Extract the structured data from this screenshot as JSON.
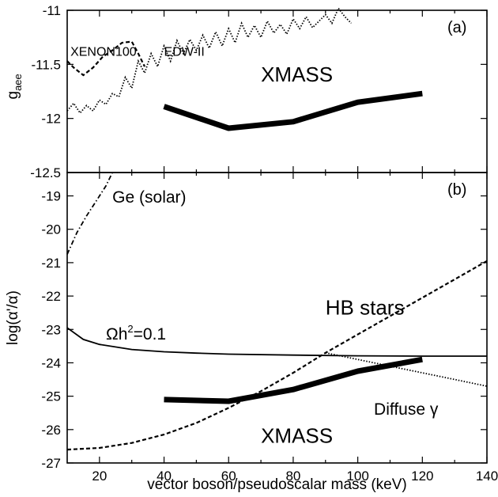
{
  "chart_data": [
    {
      "panel": "(a)",
      "type": "line",
      "xlim": [
        10,
        140
      ],
      "ylim": [
        -12.5,
        -11
      ],
      "ylabel_main": "g",
      "ylabel_sub": "aee",
      "yticks": [
        "-11",
        "-11.5",
        "-12",
        "-12.5"
      ],
      "series": [
        {
          "name": "XMASS",
          "style": "thick",
          "x": [
            40,
            60,
            80,
            100,
            120
          ],
          "y": [
            -11.89,
            -12.09,
            -12.03,
            -11.85,
            -11.77
          ]
        },
        {
          "name": "XENON100",
          "style": "dashed",
          "x": [
            10,
            12,
            15,
            18,
            21,
            24,
            27,
            30,
            32,
            34
          ],
          "y": [
            -11.47,
            -11.53,
            -11.6,
            -11.53,
            -11.43,
            -11.37,
            -11.3,
            -11.29,
            -11.4,
            -11.52
          ]
        },
        {
          "name": "EDW-II",
          "style": "dotted",
          "x": [
            10,
            12,
            14,
            16,
            18,
            20,
            22,
            24,
            26,
            28,
            30,
            32,
            34,
            36,
            38,
            40,
            42,
            44,
            46,
            48,
            50,
            52,
            54,
            56,
            58,
            60,
            62,
            64,
            66,
            68,
            70,
            72,
            74,
            76,
            78,
            80,
            82,
            84,
            86,
            88,
            90,
            92,
            94,
            96,
            98
          ],
          "y": [
            -11.93,
            -11.86,
            -11.95,
            -11.88,
            -11.93,
            -11.83,
            -11.87,
            -11.77,
            -11.8,
            -11.62,
            -11.72,
            -11.47,
            -11.58,
            -11.4,
            -11.52,
            -11.33,
            -11.47,
            -11.28,
            -11.4,
            -11.27,
            -11.37,
            -11.23,
            -11.35,
            -11.2,
            -11.33,
            -11.17,
            -11.3,
            -11.12,
            -11.25,
            -11.14,
            -11.25,
            -11.1,
            -11.21,
            -11.13,
            -11.22,
            -11.08,
            -11.17,
            -11.06,
            -11.16,
            -11.1,
            -11.04,
            -11.12,
            -10.98,
            -11.06,
            -11.12
          ]
        }
      ],
      "annotations": [
        {
          "text": "XMASS",
          "x": 70,
          "y": -11.66,
          "size": "big"
        },
        {
          "text": "XENON100",
          "x": 11,
          "y": -11.42,
          "size": "small"
        },
        {
          "text": "EDW-II",
          "x": 40,
          "y": -11.42,
          "size": "small"
        }
      ]
    },
    {
      "panel": "(b)",
      "type": "line",
      "xlim": [
        10,
        140
      ],
      "ylim": [
        -27,
        -18.3
      ],
      "ylabel": "log(α'/α)",
      "xlabel": "vector boson/pseudoscalar mass (keV)",
      "xticks": [
        "20",
        "40",
        "60",
        "80",
        "100",
        "120",
        "140"
      ],
      "yticks": [
        "-19",
        "-20",
        "-21",
        "-22",
        "-23",
        "-24",
        "-25",
        "-26",
        "-27"
      ],
      "series": [
        {
          "name": "XMASS",
          "style": "thick",
          "x": [
            40,
            60,
            80,
            100,
            120
          ],
          "y": [
            -25.1,
            -25.15,
            -24.8,
            -24.25,
            -23.9
          ]
        },
        {
          "name": "HB stars",
          "style": "dashed",
          "x": [
            10,
            20,
            30,
            40,
            50,
            60,
            70,
            80,
            90,
            100,
            110,
            120,
            130,
            140
          ],
          "y": [
            -26.6,
            -26.55,
            -26.4,
            -26.15,
            -25.8,
            -25.35,
            -24.85,
            -24.3,
            -23.7,
            -23.15,
            -22.6,
            -22.05,
            -21.5,
            -20.95
          ]
        },
        {
          "name": "Ωh²=0.1",
          "style": "solid",
          "x": [
            10,
            15,
            20,
            30,
            40,
            50,
            60,
            80,
            100,
            120,
            140
          ],
          "y": [
            -22.95,
            -23.3,
            -23.45,
            -23.6,
            -23.67,
            -23.71,
            -23.74,
            -23.77,
            -23.79,
            -23.8,
            -23.8
          ]
        },
        {
          "name": "Diffuse γ",
          "style": "dotted",
          "x": [
            90,
            100,
            110,
            120,
            130,
            140
          ],
          "y": [
            -23.7,
            -23.9,
            -24.1,
            -24.3,
            -24.5,
            -24.7
          ]
        },
        {
          "name": "Ge (solar)",
          "style": "dashdot",
          "x": [
            10,
            13,
            16,
            19,
            22,
            24
          ],
          "y": [
            -20.75,
            -20.1,
            -19.6,
            -19.15,
            -18.7,
            -18.3
          ]
        }
      ],
      "annotations": [
        {
          "text": "Ge (solar)",
          "x": 24,
          "y": -19.2,
          "size": "mid"
        },
        {
          "text": "HB stars",
          "x": 90,
          "y": -22.55,
          "size": "big"
        },
        {
          "text": "Diffuse γ",
          "x": 105,
          "y": -25.55,
          "size": "mid"
        },
        {
          "text": "XMASS",
          "x": 70,
          "y": -26.4,
          "size": "big"
        }
      ]
    }
  ],
  "omega_label": {
    "main": "Ωh",
    "sup": "2",
    "tail": "=0.1",
    "x": 22,
    "y": -23.3
  }
}
